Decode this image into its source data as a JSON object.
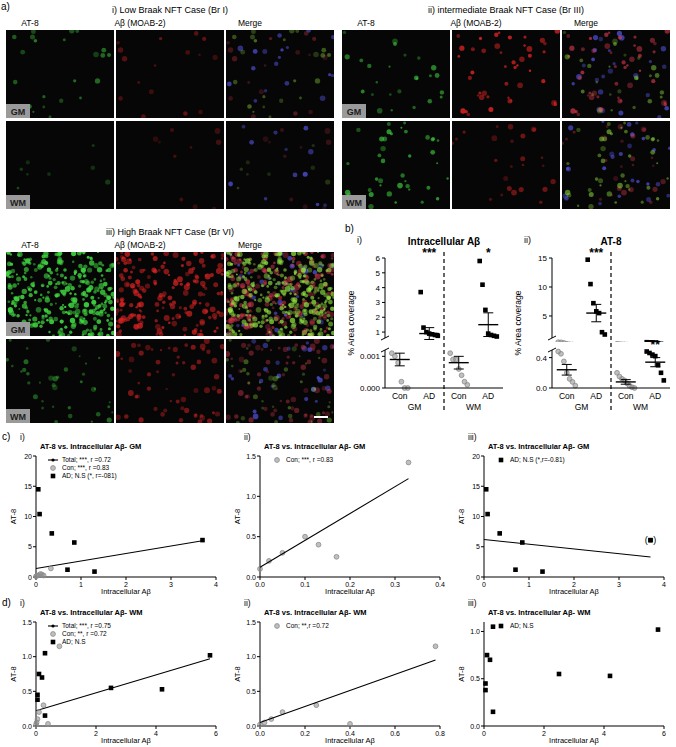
{
  "figure": {
    "panel_labels": {
      "a": "a)",
      "b": "b)",
      "c": "c)",
      "d": "d)"
    },
    "cases": [
      {
        "title": "i) Low Braak NFT Case (Br I)",
        "channels": [
          "AT-8",
          "Aβ (MOAB-2)",
          "Merge"
        ],
        "rows": [
          "GM",
          "WM"
        ]
      },
      {
        "title": "ii) intermediate Braak NFT Case (Br III)",
        "channels": [
          "AT-8",
          "Aβ (MOAB-2)",
          "Merge"
        ],
        "rows": [
          "GM",
          "WM"
        ]
      },
      {
        "title": "iii) High Braak NFT Case (Br VI)",
        "channels": [
          "AT-8",
          "Aβ (MOAB-2)",
          "Merge"
        ],
        "rows": [
          "GM",
          "WM"
        ]
      }
    ]
  },
  "chart_data": [
    {
      "type": "scatter",
      "panel": "i)",
      "title": "Intracellular Aβ",
      "ylabel": "% Area coverage",
      "categories": [
        "Con",
        "AD",
        "Con",
        "AD"
      ],
      "tick_labels": "y",
      "ylim": [
        0.6,
        6
      ],
      "yticks": [
        1,
        2,
        3,
        4,
        5,
        6
      ],
      "series": [
        {
          "color": "#8a8a8a",
          "marker": "circle",
          "values": [
            [
              0.0011,
              0.001,
              0.0008,
              0.0002,
              0,
              0
            ],
            null,
            [
              0.0011,
              0.0009,
              0.0009,
              0.0006,
              0.0004,
              0.0002,
              0.0001
            ],
            null
          ],
          "means": [
            0.0009,
            null,
            0.0008,
            null
          ],
          "errors": [
            0.0002,
            null,
            0.0002,
            null
          ]
        },
        {
          "color": "#000000",
          "marker": "square",
          "values": [
            null,
            [
              3.7,
              1.3,
              1.0,
              0.9,
              0.85,
              0.8,
              0.75
            ],
            null,
            [
              5.8,
              4.2,
              2.5,
              0.9,
              0.8,
              0.75,
              0.7
            ]
          ],
          "means": [
            null,
            0.9,
            null,
            1.5
          ],
          "errors": [
            null,
            0.4,
            null,
            0.8
          ]
        }
      ],
      "annotations": [
        {
          "text": "***",
          "category": 1
        },
        {
          "text": "*",
          "category": 3
        }
      ]
    },
    {
      "type": "scatter",
      "categories": [
        "Con",
        "AD",
        "Con",
        "AD"
      ],
      "group_labels": [
        "GM",
        "WM"
      ],
      "ylim": [
        0,
        0.0012
      ],
      "yticks": [
        {
          "value": 0,
          "label": "0.000"
        },
        {
          "value": 0.001,
          "label": "0.001"
        }
      ],
      "series": [
        {
          "color": "#8a8a8a",
          "marker": "circle",
          "values": [
            [
              0.0011,
              0.001,
              0.0008,
              0.0002,
              0,
              0
            ],
            null,
            [
              0.0011,
              0.0009,
              0.0009,
              0.0006,
              0.0004,
              0.0002,
              0.0001
            ],
            null
          ],
          "means": [
            0.0009,
            null,
            0.0008,
            null
          ],
          "errors": [
            0.0002,
            null,
            0.0002,
            null
          ]
        },
        {
          "color": "#000000",
          "marker": "square",
          "values": [
            null,
            [
              3.7,
              1.3,
              1.0,
              0.9,
              0.85,
              0.8,
              0.75
            ],
            null,
            [
              5.8,
              4.2,
              2.5,
              0.9,
              0.8,
              0.75,
              0.7
            ]
          ],
          "means": [
            null,
            0.9,
            null,
            1.5
          ],
          "errors": [
            null,
            0.4,
            null,
            0.8
          ]
        }
      ]
    },
    {
      "type": "scatter",
      "panel": "ii)",
      "title": "AT-8",
      "ylabel": "% Area coverage",
      "categories": [
        "Con",
        "AD",
        "Con",
        "AD"
      ],
      "tick_labels": "y",
      "ylim": [
        1.2,
        15
      ],
      "yticks": [
        5,
        10,
        15
      ],
      "series": [
        {
          "color": "#8a8a8a",
          "marker": "circle",
          "values": [
            [
              0.48,
              0.45,
              0.35,
              0.2,
              0.12,
              0.08,
              0.03
            ],
            null,
            [
              0.2,
              0.15,
              0.12,
              0.1,
              0.06,
              0.03,
              0.01,
              0
            ],
            null
          ],
          "means": [
            0.24,
            null,
            0.08,
            null
          ],
          "errors": [
            0.07,
            null,
            0.03,
            null
          ]
        },
        {
          "color": "#000000",
          "marker": "square",
          "values": [
            null,
            [
              14.7,
              10.5,
              7.2,
              5.8,
              5.5,
              2.2,
              1.8
            ],
            null,
            [
              0.48,
              0.46,
              0.44,
              0.42,
              0.3,
              0.2,
              0.1
            ]
          ],
          "means": [
            null,
            5.5,
            null,
            0.34
          ],
          "errors": [
            null,
            1.5,
            null,
            0.06
          ]
        }
      ],
      "annotations": [
        {
          "text": "***",
          "category": 1
        }
      ]
    },
    {
      "type": "scatter",
      "categories": [
        "Con",
        "AD",
        "Con",
        "AD"
      ],
      "group_labels": [
        "GM",
        "WM"
      ],
      "ylim": [
        0,
        0.5
      ],
      "yticks": [
        {
          "value": 0,
          "label": "0.0"
        },
        {
          "value": 0.4,
          "label": "0.4"
        }
      ],
      "series": [
        {
          "color": "#8a8a8a",
          "marker": "circle",
          "values": [
            [
              0.48,
              0.45,
              0.35,
              0.2,
              0.12,
              0.08,
              0.03
            ],
            null,
            [
              0.2,
              0.15,
              0.12,
              0.1,
              0.06,
              0.03,
              0.01,
              0
            ],
            null
          ],
          "means": [
            0.24,
            null,
            0.08,
            null
          ],
          "errors": [
            0.07,
            null,
            0.03,
            null
          ]
        },
        {
          "color": "#000000",
          "marker": "square",
          "values": [
            null,
            [
              14.7,
              10.5,
              7.2,
              5.8,
              5.5,
              2.2,
              1.8
            ],
            null,
            [
              0.48,
              0.46,
              0.44,
              0.42,
              0.3,
              0.2,
              0.1
            ]
          ],
          "means": [
            null,
            5.5,
            null,
            0.34
          ],
          "errors": [
            null,
            1.5,
            null,
            0.06
          ]
        }
      ],
      "annotations": [
        {
          "text": "**",
          "category": 3
        }
      ]
    },
    {
      "type": "scatter",
      "panel": "i)",
      "title": "AT-8 vs. Intracellular Aβ- GM",
      "xlabel": "Intracellular Aβ",
      "ylabel": "AT-8",
      "xlim": [
        0,
        4
      ],
      "ylim": [
        0,
        20
      ],
      "xticks": [
        0,
        1,
        2,
        3,
        4
      ],
      "yticks": [
        0,
        5,
        10,
        15,
        20
      ],
      "legend": "top-left",
      "series": [
        {
          "name": "Total; ***, r =0.72",
          "type": "line",
          "color": "#000000",
          "x": [
            0,
            3.7
          ],
          "values": [
            1.4,
            6.0
          ]
        },
        {
          "name": "Con; ***, r =0.83",
          "type": "scatter",
          "marker": "circle",
          "color": "#8a8a8a",
          "x": [
            0,
            0.02,
            0.05,
            0.1,
            0.13,
            0.17,
            0.33
          ],
          "values": [
            0.1,
            0.2,
            0.3,
            0.5,
            0.4,
            0.25,
            1.42
          ]
        },
        {
          "name": "AD; N.S (*, r=-081)",
          "type": "scatter",
          "marker": "square",
          "color": "#000000",
          "x": [
            0.05,
            0.08,
            0.35,
            0.85,
            0.7,
            1.3,
            3.7
          ],
          "values": [
            14.5,
            10.4,
            7.2,
            5.7,
            1.2,
            0.9,
            6.1
          ]
        }
      ]
    },
    {
      "type": "scatter",
      "panel": "ii)",
      "title": "AT-8 vs. Intracellular Aβ- GM",
      "xlabel": "Intracellular Aβ",
      "ylabel": "AT-8",
      "xlim": [
        0,
        0.4
      ],
      "ylim": [
        0,
        1.5
      ],
      "xticks": [
        {
          "value": 0,
          "label": "0.0"
        },
        0.1,
        0.2,
        0.3,
        0.4
      ],
      "yticks": [
        {
          "value": 0,
          "label": "0.0"
        },
        0.5,
        {
          "value": 1,
          "label": "1.0"
        },
        1.5
      ],
      "legend": "top-left",
      "series": [
        {
          "name": "Con; ***, r =0.83",
          "type": "scatter",
          "marker": "circle",
          "color": "#8a8a8a",
          "x": [
            0,
            0.02,
            0.05,
            0.1,
            0.13,
            0.17,
            0.33
          ],
          "values": [
            0.1,
            0.2,
            0.3,
            0.5,
            0.4,
            0.25,
            1.42
          ]
        },
        {
          "type": "line",
          "color": "#000000",
          "x": [
            0,
            0.33
          ],
          "values": [
            0.12,
            1.22
          ]
        }
      ]
    },
    {
      "type": "scatter",
      "panel": "iii)",
      "title": "AT-8 vs. Intracellular Aβ- GM",
      "xlabel": "Intracellular Aβ",
      "ylabel": "AT-8",
      "xlim": [
        0,
        4
      ],
      "ylim": [
        0,
        20
      ],
      "xticks": [
        0,
        1,
        2,
        3,
        4
      ],
      "yticks": [
        0,
        5,
        10,
        15,
        20
      ],
      "legend": "top-left",
      "series": [
        {
          "name": "AD; N.S (*,r=-0.81)",
          "type": "scatter",
          "marker": "square",
          "color": "#000000",
          "x": [
            0.05,
            0.08,
            0.35,
            0.85,
            0.7,
            1.3,
            3.7
          ],
          "values": [
            14.5,
            10.4,
            7.2,
            5.7,
            1.2,
            0.9,
            6.1
          ]
        },
        {
          "type": "line",
          "color": "#000000",
          "x": [
            0,
            3.7
          ],
          "values": [
            6.2,
            3.3
          ]
        }
      ],
      "annotations": [
        {
          "text": "(■)",
          "x": 3.7,
          "y": 6.1
        }
      ]
    },
    {
      "type": "scatter",
      "panel": "i)",
      "title": "AT-8 vs. Intracellular Aβ- WM",
      "xlabel": "Intracellular Aβ",
      "ylabel": "AT-8",
      "xlim": [
        0,
        6
      ],
      "ylim": [
        0,
        1.5
      ],
      "xticks": [
        0,
        2,
        4,
        6
      ],
      "yticks": [
        {
          "value": 0,
          "label": "0.0"
        },
        0.5,
        {
          "value": 1,
          "label": "1.0"
        },
        1.5
      ],
      "legend": "top-left",
      "series": [
        {
          "name": "Total; ***, r =0.75",
          "type": "line",
          "color": "#000000",
          "x": [
            0,
            5.8
          ],
          "values": [
            0.22,
            0.97
          ]
        },
        {
          "name": "Con; **, r =0.72",
          "type": "scatter",
          "marker": "circle",
          "color": "#8a8a8a",
          "x": [
            0,
            0.02,
            0.05,
            0.1,
            0.25,
            0.4,
            0.78
          ],
          "values": [
            0.02,
            0.05,
            0.1,
            0.2,
            0.3,
            0.03,
            1.15
          ]
        },
        {
          "name": "AD; N.S",
          "type": "scatter",
          "marker": "square",
          "color": "#000000",
          "x": [
            0.05,
            0.05,
            0.1,
            0.2,
            0.3,
            0.3,
            2.5,
            4.2,
            5.8
          ],
          "values": [
            0.45,
            0.38,
            0.75,
            0.7,
            1.05,
            0.15,
            0.55,
            0.53,
            1.02
          ]
        }
      ]
    },
    {
      "type": "scatter",
      "panel": "ii)",
      "title": "AT-8 vs. Intracellular Aβ- WM",
      "xlabel": "Intracellular Aβ",
      "ylabel": "AT-8",
      "xlim": [
        0,
        0.8
      ],
      "ylim": [
        0,
        1.5
      ],
      "xticks": [
        {
          "value": 0,
          "label": "0.0"
        },
        0.2,
        0.4,
        0.6,
        0.8
      ],
      "yticks": [
        {
          "value": 0,
          "label": "0.0"
        },
        0.5,
        {
          "value": 1,
          "label": "1.0"
        },
        1.5
      ],
      "legend": "top-left",
      "series": [
        {
          "name": "Con; **,r =0.72",
          "type": "scatter",
          "marker": "circle",
          "color": "#8a8a8a",
          "x": [
            0,
            0.02,
            0.05,
            0.1,
            0.25,
            0.4,
            0.78
          ],
          "values": [
            0.02,
            0.05,
            0.1,
            0.2,
            0.3,
            0.03,
            1.15
          ]
        },
        {
          "type": "line",
          "color": "#000000",
          "x": [
            0,
            0.78
          ],
          "values": [
            0.05,
            0.95
          ]
        }
      ]
    },
    {
      "type": "scatter",
      "panel": "iii)",
      "title": "AT-8 vs. Intracellular Aβ- WM",
      "xlabel": "Intracellular Aβ",
      "ylabel": "AT-8",
      "xlim": [
        0,
        6
      ],
      "ylim": [
        0,
        1.1
      ],
      "xticks": [
        0,
        2,
        4,
        6
      ],
      "yticks": [
        {
          "value": 0,
          "label": "0.0"
        },
        0.5,
        {
          "value": 1,
          "label": "1.0"
        }
      ],
      "legend": "top-left",
      "series": [
        {
          "name": "AD; N.S",
          "type": "scatter",
          "marker": "square",
          "color": "#000000",
          "x": [
            0.05,
            0.05,
            0.1,
            0.2,
            0.3,
            0.3,
            2.5,
            4.2,
            5.8
          ],
          "values": [
            0.45,
            0.38,
            0.75,
            0.7,
            1.05,
            0.15,
            0.55,
            0.53,
            1.02
          ]
        }
      ]
    }
  ]
}
